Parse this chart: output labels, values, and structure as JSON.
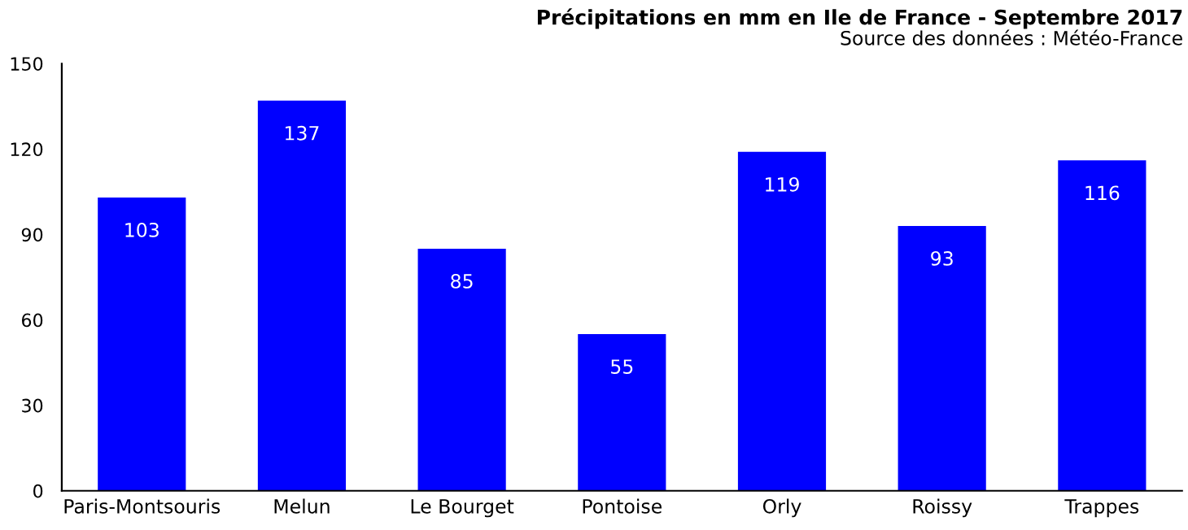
{
  "chart_data": {
    "type": "bar",
    "title": "Précipitations en mm en Ile de France - Septembre 2017",
    "subtitle": "Source des données : Météo-France",
    "categories": [
      "Paris-Montsouris",
      "Melun",
      "Le Bourget",
      "Pontoise",
      "Orly",
      "Roissy",
      "Trappes"
    ],
    "values": [
      103,
      137,
      85,
      55,
      119,
      93,
      116
    ],
    "color": "#0000ff",
    "ylim": [
      0,
      150
    ],
    "yticks": [
      0,
      30,
      60,
      90,
      120,
      150
    ],
    "data_labels": true,
    "grid": false,
    "legend": false
  }
}
